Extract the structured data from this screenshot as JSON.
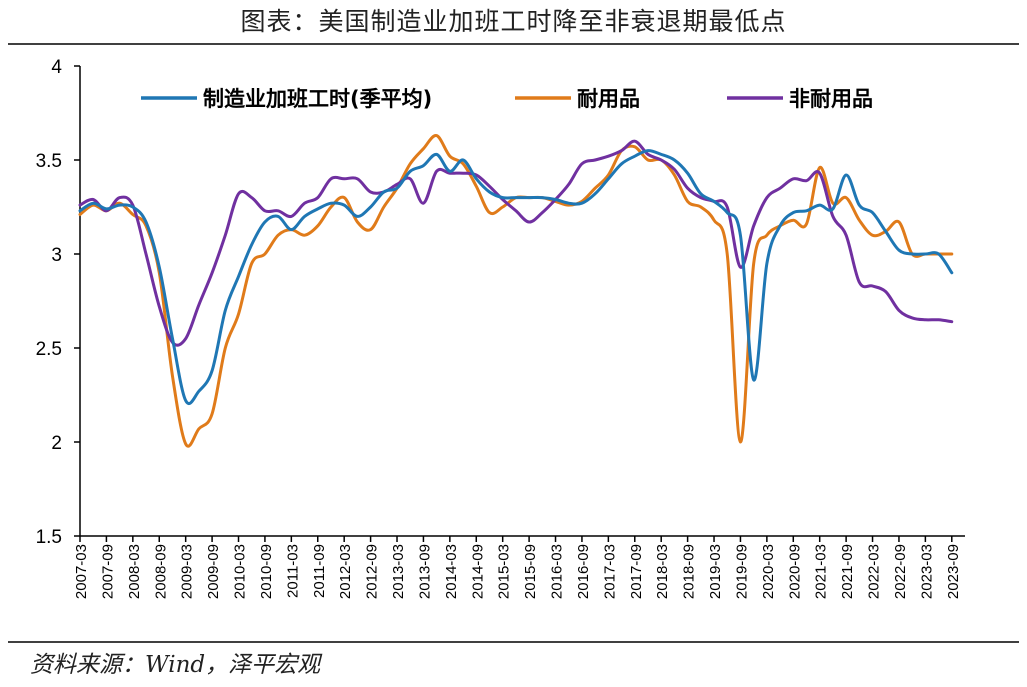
{
  "title": "图表：美国制造业加班工时降至非衰退期最低点",
  "source": "资料来源：Wind，泽平宏观",
  "colors": {
    "manufacturing": "#1f77b4",
    "durable": "#e07b1a",
    "nondurable": "#7030a0",
    "axis": "#000000",
    "rule": "#404040"
  },
  "chart_data": {
    "type": "line",
    "title": "",
    "xlabel": "",
    "ylabel": "",
    "ylim": [
      1.5,
      4
    ],
    "yticks": [
      "1.5",
      "2",
      "2.5",
      "3",
      "3.5",
      "4"
    ],
    "grid": false,
    "legend_position": "top",
    "x": [
      "2007-03",
      "2007-09",
      "2008-03",
      "2008-09",
      "2009-03",
      "2009-09",
      "2010-03",
      "2010-09",
      "2011-03",
      "2011-09",
      "2012-03",
      "2012-09",
      "2013-03",
      "2013-09",
      "2014-03",
      "2014-09",
      "2015-03",
      "2015-09",
      "2016-03",
      "2016-09",
      "2017-03",
      "2017-09",
      "2018-03",
      "2018-09",
      "2019-03",
      "2019-09",
      "2020-03",
      "2020-09",
      "2021-03",
      "2021-09",
      "2022-03",
      "2022-09",
      "2023-03",
      "2023-09"
    ],
    "series": [
      {
        "name": "制造业加班工时(季平均)",
        "color": "#1f77b4",
        "points": [
          [
            "2007-03",
            3.23
          ],
          [
            "2007-06",
            3.27
          ],
          [
            "2007-09",
            3.24
          ],
          [
            "2007-12",
            3.26
          ],
          [
            "2008-03",
            3.25
          ],
          [
            "2008-06",
            3.17
          ],
          [
            "2008-09",
            2.93
          ],
          [
            "2008-12",
            2.55
          ],
          [
            "2009-03",
            2.22
          ],
          [
            "2009-06",
            2.27
          ],
          [
            "2009-09",
            2.38
          ],
          [
            "2009-12",
            2.7
          ],
          [
            "2010-03",
            2.88
          ],
          [
            "2010-06",
            3.05
          ],
          [
            "2010-09",
            3.17
          ],
          [
            "2010-12",
            3.2
          ],
          [
            "2011-03",
            3.13
          ],
          [
            "2011-06",
            3.2
          ],
          [
            "2011-09",
            3.24
          ],
          [
            "2011-12",
            3.27
          ],
          [
            "2012-03",
            3.26
          ],
          [
            "2012-06",
            3.2
          ],
          [
            "2012-09",
            3.25
          ],
          [
            "2012-12",
            3.33
          ],
          [
            "2013-03",
            3.35
          ],
          [
            "2013-06",
            3.44
          ],
          [
            "2013-09",
            3.47
          ],
          [
            "2013-12",
            3.53
          ],
          [
            "2014-03",
            3.44
          ],
          [
            "2014-06",
            3.5
          ],
          [
            "2014-09",
            3.4
          ],
          [
            "2014-12",
            3.33
          ],
          [
            "2015-03",
            3.3
          ],
          [
            "2015-06",
            3.3
          ],
          [
            "2015-09",
            3.3
          ],
          [
            "2015-12",
            3.3
          ],
          [
            "2016-03",
            3.29
          ],
          [
            "2016-06",
            3.27
          ],
          [
            "2016-09",
            3.27
          ],
          [
            "2016-12",
            3.32
          ],
          [
            "2017-03",
            3.4
          ],
          [
            "2017-06",
            3.48
          ],
          [
            "2017-09",
            3.52
          ],
          [
            "2017-12",
            3.55
          ],
          [
            "2018-03",
            3.53
          ],
          [
            "2018-06",
            3.5
          ],
          [
            "2018-09",
            3.43
          ],
          [
            "2018-12",
            3.32
          ],
          [
            "2019-03",
            3.28
          ],
          [
            "2019-06",
            3.22
          ],
          [
            "2019-09",
            3.1
          ],
          [
            "2019-12",
            2.33
          ],
          [
            "2020-03",
            2.95
          ],
          [
            "2020-06",
            3.15
          ],
          [
            "2020-09",
            3.22
          ],
          [
            "2020-12",
            3.23
          ],
          [
            "2021-03",
            3.26
          ],
          [
            "2021-06",
            3.24
          ],
          [
            "2021-09",
            3.42
          ],
          [
            "2021-12",
            3.26
          ],
          [
            "2022-03",
            3.22
          ],
          [
            "2022-06",
            3.12
          ],
          [
            "2022-09",
            3.02
          ],
          [
            "2022-12",
            3.0
          ],
          [
            "2023-03",
            3.0
          ],
          [
            "2023-06",
            3.0
          ],
          [
            "2023-09",
            2.9
          ]
        ]
      },
      {
        "name": "耐用品",
        "color": "#e07b1a",
        "points": [
          [
            "2007-03",
            3.21
          ],
          [
            "2007-06",
            3.26
          ],
          [
            "2007-09",
            3.23
          ],
          [
            "2007-12",
            3.27
          ],
          [
            "2008-03",
            3.21
          ],
          [
            "2008-06",
            3.15
          ],
          [
            "2008-09",
            2.9
          ],
          [
            "2008-12",
            2.35
          ],
          [
            "2009-03",
            1.99
          ],
          [
            "2009-06",
            2.07
          ],
          [
            "2009-09",
            2.15
          ],
          [
            "2009-12",
            2.5
          ],
          [
            "2010-03",
            2.68
          ],
          [
            "2010-06",
            2.95
          ],
          [
            "2010-09",
            3.0
          ],
          [
            "2010-12",
            3.1
          ],
          [
            "2011-03",
            3.13
          ],
          [
            "2011-06",
            3.1
          ],
          [
            "2011-09",
            3.15
          ],
          [
            "2011-12",
            3.25
          ],
          [
            "2012-03",
            3.3
          ],
          [
            "2012-06",
            3.17
          ],
          [
            "2012-09",
            3.13
          ],
          [
            "2012-12",
            3.25
          ],
          [
            "2013-03",
            3.35
          ],
          [
            "2013-06",
            3.48
          ],
          [
            "2013-09",
            3.56
          ],
          [
            "2013-12",
            3.63
          ],
          [
            "2014-03",
            3.52
          ],
          [
            "2014-06",
            3.48
          ],
          [
            "2014-09",
            3.36
          ],
          [
            "2014-12",
            3.22
          ],
          [
            "2015-03",
            3.25
          ],
          [
            "2015-06",
            3.3
          ],
          [
            "2015-09",
            3.3
          ],
          [
            "2015-12",
            3.3
          ],
          [
            "2016-03",
            3.28
          ],
          [
            "2016-06",
            3.26
          ],
          [
            "2016-09",
            3.28
          ],
          [
            "2016-12",
            3.35
          ],
          [
            "2017-03",
            3.42
          ],
          [
            "2017-06",
            3.55
          ],
          [
            "2017-09",
            3.57
          ],
          [
            "2017-12",
            3.5
          ],
          [
            "2018-03",
            3.5
          ],
          [
            "2018-06",
            3.42
          ],
          [
            "2018-09",
            3.28
          ],
          [
            "2018-12",
            3.25
          ],
          [
            "2019-03",
            3.18
          ],
          [
            "2019-06",
            3.0
          ],
          [
            "2019-09",
            2.0
          ],
          [
            "2019-12",
            2.95
          ],
          [
            "2020-03",
            3.1
          ],
          [
            "2020-06",
            3.15
          ],
          [
            "2020-09",
            3.18
          ],
          [
            "2020-12",
            3.16
          ],
          [
            "2021-03",
            3.46
          ],
          [
            "2021-06",
            3.27
          ],
          [
            "2021-09",
            3.3
          ],
          [
            "2021-12",
            3.18
          ],
          [
            "2022-03",
            3.1
          ],
          [
            "2022-06",
            3.12
          ],
          [
            "2022-09",
            3.17
          ],
          [
            "2022-12",
            3.0
          ],
          [
            "2023-03",
            3.0
          ],
          [
            "2023-06",
            3.0
          ],
          [
            "2023-09",
            3.0
          ]
        ]
      },
      {
        "name": "非耐用品",
        "color": "#7030a0",
        "points": [
          [
            "2007-03",
            3.26
          ],
          [
            "2007-06",
            3.29
          ],
          [
            "2007-09",
            3.23
          ],
          [
            "2007-12",
            3.3
          ],
          [
            "2008-03",
            3.26
          ],
          [
            "2008-06",
            3.0
          ],
          [
            "2008-09",
            2.72
          ],
          [
            "2008-12",
            2.53
          ],
          [
            "2009-03",
            2.55
          ],
          [
            "2009-06",
            2.73
          ],
          [
            "2009-09",
            2.9
          ],
          [
            "2009-12",
            3.1
          ],
          [
            "2010-03",
            3.32
          ],
          [
            "2010-06",
            3.3
          ],
          [
            "2010-09",
            3.23
          ],
          [
            "2010-12",
            3.23
          ],
          [
            "2011-03",
            3.2
          ],
          [
            "2011-06",
            3.27
          ],
          [
            "2011-09",
            3.3
          ],
          [
            "2011-12",
            3.4
          ],
          [
            "2012-03",
            3.4
          ],
          [
            "2012-06",
            3.4
          ],
          [
            "2012-09",
            3.33
          ],
          [
            "2012-12",
            3.33
          ],
          [
            "2013-03",
            3.37
          ],
          [
            "2013-06",
            3.4
          ],
          [
            "2013-09",
            3.27
          ],
          [
            "2013-12",
            3.44
          ],
          [
            "2014-03",
            3.43
          ],
          [
            "2014-06",
            3.43
          ],
          [
            "2014-09",
            3.42
          ],
          [
            "2014-12",
            3.36
          ],
          [
            "2015-03",
            3.29
          ],
          [
            "2015-06",
            3.23
          ],
          [
            "2015-09",
            3.17
          ],
          [
            "2015-12",
            3.22
          ],
          [
            "2016-03",
            3.29
          ],
          [
            "2016-06",
            3.37
          ],
          [
            "2016-09",
            3.48
          ],
          [
            "2016-12",
            3.5
          ],
          [
            "2017-03",
            3.52
          ],
          [
            "2017-06",
            3.55
          ],
          [
            "2017-09",
            3.6
          ],
          [
            "2017-12",
            3.53
          ],
          [
            "2018-03",
            3.5
          ],
          [
            "2018-06",
            3.45
          ],
          [
            "2018-09",
            3.35
          ],
          [
            "2018-12",
            3.3
          ],
          [
            "2019-03",
            3.28
          ],
          [
            "2019-06",
            3.25
          ],
          [
            "2019-09",
            2.93
          ],
          [
            "2019-12",
            3.15
          ],
          [
            "2020-03",
            3.3
          ],
          [
            "2020-06",
            3.35
          ],
          [
            "2020-09",
            3.4
          ],
          [
            "2020-12",
            3.39
          ],
          [
            "2021-03",
            3.43
          ],
          [
            "2021-06",
            3.2
          ],
          [
            "2021-09",
            3.1
          ],
          [
            "2021-12",
            2.85
          ],
          [
            "2022-03",
            2.83
          ],
          [
            "2022-06",
            2.8
          ],
          [
            "2022-09",
            2.7
          ],
          [
            "2022-12",
            2.66
          ],
          [
            "2023-03",
            2.65
          ],
          [
            "2023-06",
            2.65
          ],
          [
            "2023-09",
            2.64
          ]
        ]
      }
    ]
  }
}
